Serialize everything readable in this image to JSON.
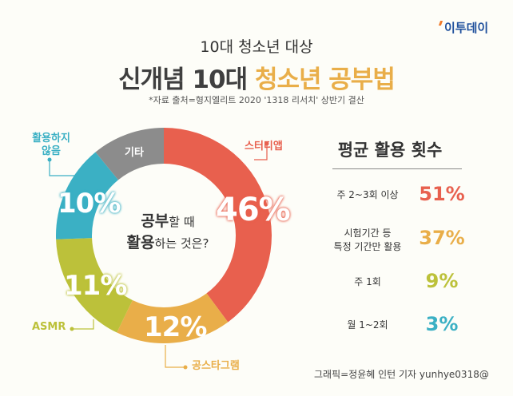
{
  "logo": "이투데이",
  "subtitle": "10대 청소년 대상",
  "title": {
    "part1": "신개념 10대 ",
    "part2": "청소년 공부법"
  },
  "source": "*자료 출처=형지엘리트 2020 '1318 리서치' 상반기 결산",
  "chart_data": {
    "type": "pie",
    "title": "공부할 때 활용하는 것은?",
    "title_parts": {
      "a": "공부",
      "b": "할 때",
      "c": "활용",
      "d": "하는 것은?"
    },
    "categories": [
      "스터디앱",
      "공스타그램",
      "ASMR",
      "활용하지 않음",
      "기타"
    ],
    "values": [
      46,
      12,
      11,
      10,
      null
    ],
    "labels": [
      "46%",
      "12%",
      "11%",
      "10%",
      ""
    ],
    "colors": [
      "#e8604e",
      "#e9ae49",
      "#bcc13a",
      "#3bb0c4",
      "#8c8c8c"
    ]
  },
  "frequency": {
    "title": "평균 활용 횟수",
    "rows": [
      {
        "label": "주 2~3회 이상",
        "value": "51%",
        "color": "#e8604e"
      },
      {
        "label": "시험기간 등\n특정 기간만 활용",
        "value": "37%",
        "color": "#e9ae49"
      },
      {
        "label": "주 1회",
        "value": "9%",
        "color": "#bcc13a"
      },
      {
        "label": "월 1~2회",
        "value": "3%",
        "color": "#3bb0c4"
      }
    ]
  },
  "credit": "그래픽=정윤혜 인턴 기자 yunhye0318@"
}
